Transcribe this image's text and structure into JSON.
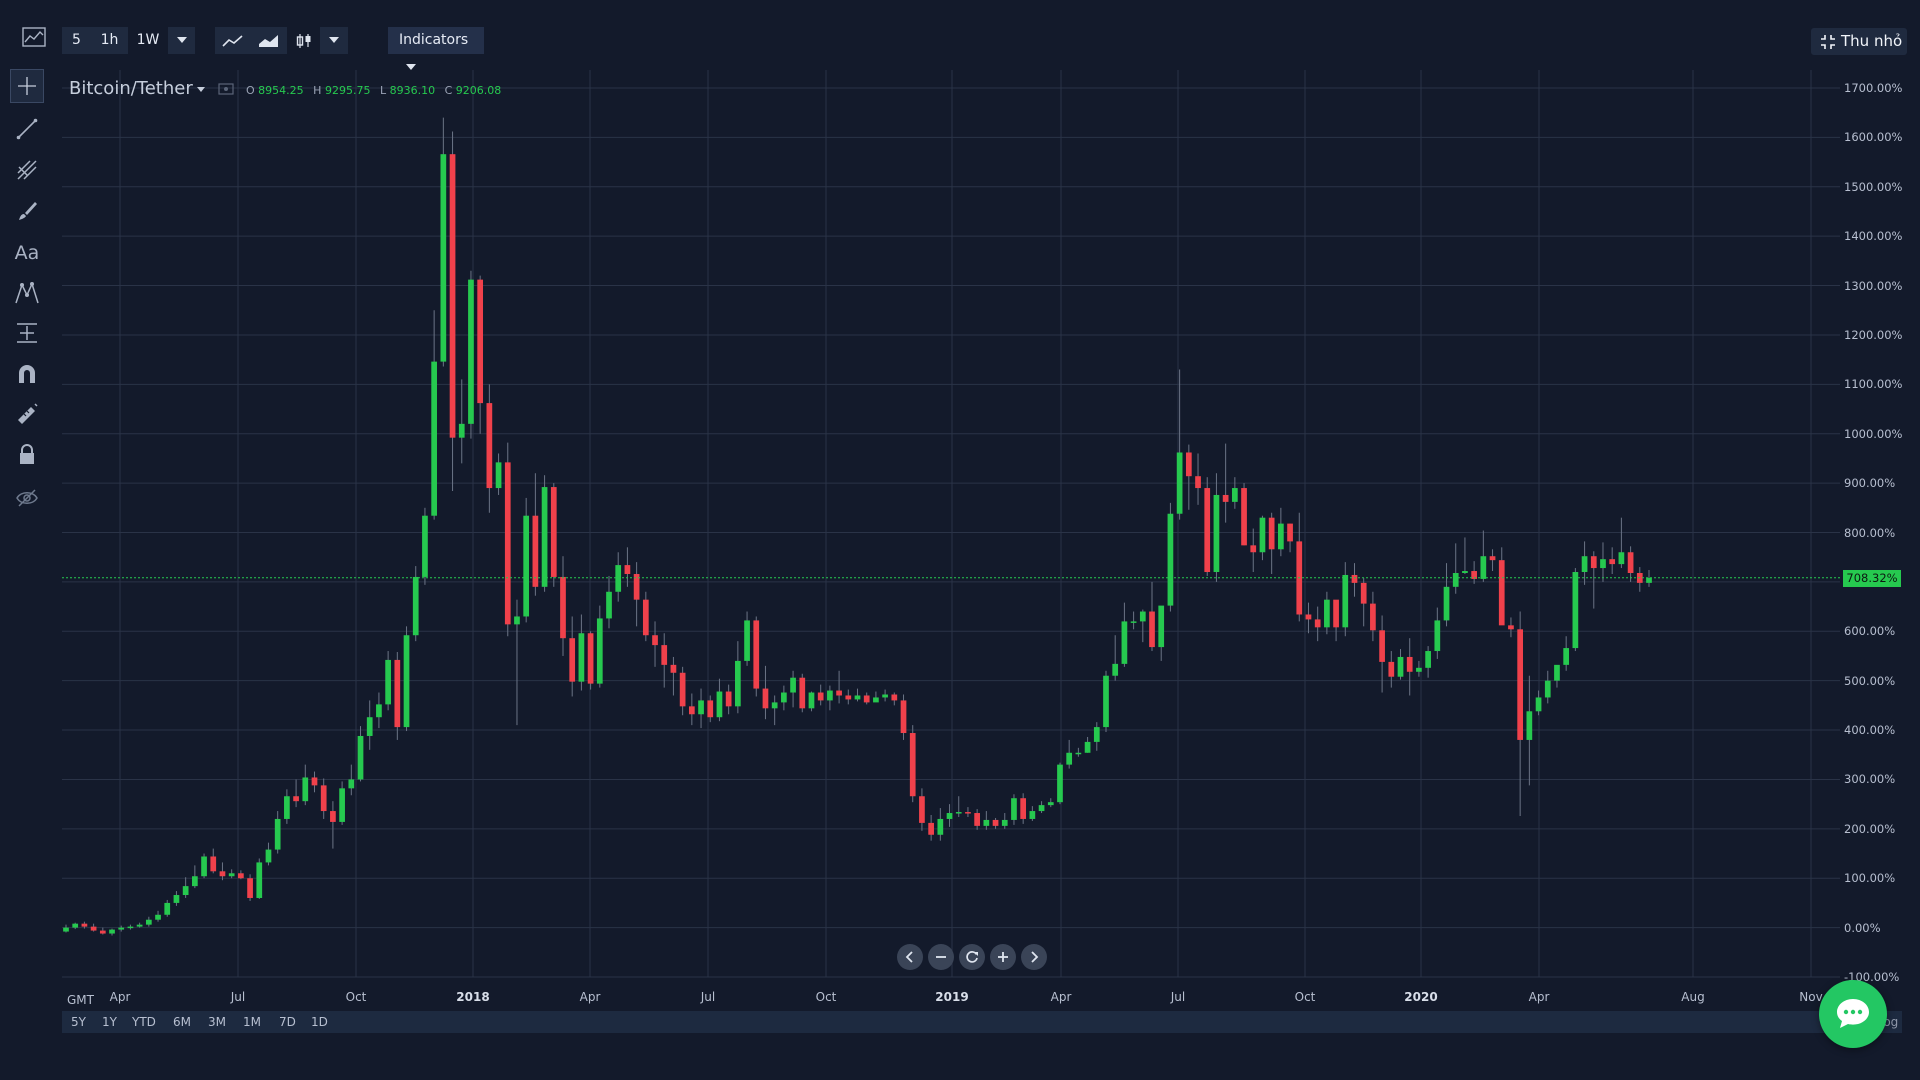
{
  "toolbar": {
    "intervals": [
      "5",
      "1h",
      "1W"
    ],
    "indicators_label": "Indicators",
    "shrink_label": "Thu nhỏ"
  },
  "tools": [
    "chart-type-icon",
    "crosshair-icon",
    "trend-line-icon",
    "fib-icon",
    "brush-icon",
    "text-icon",
    "pattern-icon",
    "measure-icon",
    "magnet-icon",
    "ruler-lock-icon",
    "lock-icon",
    "eye-hide-icon"
  ],
  "symbol": {
    "name": "Bitcoin/Tether",
    "o_label": "O",
    "o_value": "8954.25",
    "h_label": "H",
    "h_value": "9295.75",
    "l_label": "L",
    "l_value": "8936.10",
    "c_label": "C",
    "c_value": "9206.08"
  },
  "current_value_label": "708.32%",
  "timezone": "GMT",
  "ranges": [
    "5Y",
    "1Y",
    "YTD",
    "6M",
    "3M",
    "1M",
    "7D",
    "1D"
  ],
  "log_label": "log",
  "colors": {
    "up": "#26c94f",
    "down": "#f0414b",
    "background": "#131a2b",
    "grid": "#2a3347"
  },
  "chart_data": {
    "type": "candlestick",
    "y_axis_labels": [
      "1700.00%",
      "1600.00%",
      "1500.00%",
      "1400.00%",
      "1300.00%",
      "1200.00%",
      "1100.00%",
      "1000.00%",
      "900.00%",
      "800.00%",
      "700.00%",
      "600.00%",
      "500.00%",
      "400.00%",
      "300.00%",
      "200.00%",
      "100.00%",
      "0.00%",
      "-100.00%"
    ],
    "x_axis_labels": [
      {
        "label": "Apr",
        "bold": false
      },
      {
        "label": "Jul",
        "bold": false
      },
      {
        "label": "Oct",
        "bold": false
      },
      {
        "label": "2018",
        "bold": true
      },
      {
        "label": "Apr",
        "bold": false
      },
      {
        "label": "Jul",
        "bold": false
      },
      {
        "label": "Oct",
        "bold": false
      },
      {
        "label": "2019",
        "bold": true
      },
      {
        "label": "Apr",
        "bold": false
      },
      {
        "label": "Jul",
        "bold": false
      },
      {
        "label": "Oct",
        "bold": false
      },
      {
        "label": "2020",
        "bold": true
      },
      {
        "label": "Apr",
        "bold": false
      },
      {
        "label": "Aug",
        "bold": false
      },
      {
        "label": "Nov",
        "bold": false
      }
    ],
    "ylim": [
      -100,
      1700
    ],
    "current_value": 708.32,
    "candles_ohlc_percent": [
      [
        -8,
        0,
        -10,
        6
      ],
      [
        0,
        8,
        -3,
        10
      ],
      [
        8,
        2,
        -2,
        12
      ],
      [
        2,
        -6,
        -8,
        8
      ],
      [
        -6,
        -12,
        -14,
        0
      ],
      [
        -12,
        -4,
        -16,
        -2
      ],
      [
        -4,
        0,
        -8,
        4
      ],
      [
        0,
        2,
        -4,
        6
      ],
      [
        2,
        6,
        0,
        10
      ],
      [
        6,
        16,
        2,
        22
      ],
      [
        16,
        26,
        12,
        34
      ],
      [
        26,
        50,
        22,
        56
      ],
      [
        50,
        66,
        44,
        74
      ],
      [
        66,
        84,
        60,
        102
      ],
      [
        84,
        104,
        80,
        126
      ],
      [
        104,
        144,
        100,
        150
      ],
      [
        144,
        114,
        110,
        160
      ],
      [
        114,
        104,
        96,
        132
      ],
      [
        104,
        110,
        100,
        118
      ],
      [
        110,
        100,
        98,
        116
      ],
      [
        100,
        60,
        54,
        108
      ],
      [
        60,
        132,
        58,
        140
      ],
      [
        132,
        158,
        126,
        172
      ],
      [
        158,
        220,
        150,
        236
      ],
      [
        220,
        266,
        210,
        280
      ],
      [
        266,
        256,
        244,
        300
      ],
      [
        256,
        304,
        248,
        330
      ],
      [
        304,
        288,
        274,
        316
      ],
      [
        288,
        236,
        220,
        302
      ],
      [
        236,
        214,
        160,
        256
      ],
      [
        214,
        282,
        208,
        296
      ],
      [
        282,
        300,
        268,
        330
      ],
      [
        300,
        388,
        296,
        408
      ],
      [
        388,
        426,
        360,
        460
      ],
      [
        426,
        452,
        404,
        476
      ],
      [
        452,
        542,
        440,
        560
      ],
      [
        542,
        406,
        380,
        558
      ],
      [
        406,
        592,
        398,
        610
      ],
      [
        592,
        710,
        580,
        732
      ],
      [
        710,
        834,
        694,
        850
      ],
      [
        834,
        1146,
        826,
        1250
      ],
      [
        1146,
        1566,
        1136,
        1640
      ],
      [
        1566,
        992,
        884,
        1612
      ],
      [
        992,
        1020,
        940,
        1110
      ],
      [
        1020,
        1312,
        990,
        1330
      ],
      [
        1312,
        1062,
        1000,
        1320
      ],
      [
        1062,
        890,
        840,
        1100
      ],
      [
        890,
        942,
        876,
        960
      ],
      [
        942,
        614,
        590,
        982
      ],
      [
        614,
        630,
        410,
        664
      ],
      [
        630,
        834,
        618,
        870
      ],
      [
        834,
        690,
        672,
        920
      ],
      [
        690,
        892,
        680,
        916
      ],
      [
        892,
        710,
        690,
        900
      ],
      [
        710,
        586,
        550,
        752
      ],
      [
        586,
        498,
        468,
        630
      ],
      [
        498,
        596,
        480,
        634
      ],
      [
        596,
        494,
        482,
        600
      ],
      [
        494,
        626,
        486,
        652
      ],
      [
        626,
        680,
        606,
        712
      ],
      [
        680,
        734,
        660,
        760
      ],
      [
        734,
        716,
        690,
        770
      ],
      [
        716,
        664,
        610,
        740
      ],
      [
        664,
        592,
        580,
        680
      ],
      [
        592,
        572,
        528,
        620
      ],
      [
        572,
        532,
        486,
        596
      ],
      [
        532,
        516,
        470,
        548
      ],
      [
        516,
        448,
        430,
        528
      ],
      [
        448,
        432,
        410,
        474
      ],
      [
        432,
        460,
        404,
        484
      ],
      [
        460,
        426,
        416,
        470
      ],
      [
        426,
        478,
        418,
        504
      ],
      [
        478,
        448,
        432,
        492
      ],
      [
        448,
        540,
        434,
        580
      ],
      [
        540,
        622,
        530,
        640
      ],
      [
        622,
        484,
        468,
        630
      ],
      [
        484,
        444,
        422,
        530
      ],
      [
        444,
        456,
        410,
        470
      ],
      [
        456,
        476,
        440,
        490
      ],
      [
        476,
        506,
        446,
        520
      ],
      [
        506,
        444,
        436,
        514
      ],
      [
        444,
        476,
        438,
        478
      ],
      [
        476,
        460,
        450,
        492
      ],
      [
        460,
        480,
        440,
        490
      ],
      [
        480,
        470,
        454,
        520
      ],
      [
        470,
        462,
        452,
        482
      ],
      [
        462,
        470,
        458,
        484
      ],
      [
        470,
        456,
        452,
        476
      ],
      [
        456,
        466,
        458,
        478
      ],
      [
        466,
        472,
        458,
        482
      ],
      [
        472,
        460,
        450,
        476
      ],
      [
        460,
        394,
        380,
        472
      ],
      [
        394,
        266,
        254,
        410
      ],
      [
        266,
        212,
        196,
        282
      ],
      [
        212,
        188,
        176,
        228
      ],
      [
        188,
        220,
        176,
        242
      ],
      [
        220,
        232,
        204,
        250
      ],
      [
        232,
        234,
        224,
        266
      ],
      [
        234,
        232,
        224,
        244
      ],
      [
        232,
        206,
        198,
        240
      ],
      [
        206,
        218,
        198,
        236
      ],
      [
        218,
        206,
        200,
        222
      ],
      [
        206,
        218,
        200,
        232
      ],
      [
        218,
        262,
        208,
        270
      ],
      [
        262,
        220,
        210,
        272
      ],
      [
        220,
        236,
        216,
        246
      ],
      [
        236,
        248,
        232,
        256
      ],
      [
        248,
        254,
        244,
        262
      ],
      [
        254,
        330,
        250,
        334
      ],
      [
        330,
        354,
        322,
        380
      ],
      [
        354,
        354,
        346,
        364
      ],
      [
        354,
        376,
        354,
        386
      ],
      [
        376,
        406,
        358,
        416
      ],
      [
        406,
        510,
        396,
        520
      ],
      [
        510,
        534,
        500,
        592
      ],
      [
        534,
        620,
        528,
        658
      ],
      [
        620,
        620,
        604,
        640
      ],
      [
        620,
        640,
        578,
        644
      ],
      [
        640,
        568,
        560,
        700
      ],
      [
        568,
        652,
        540,
        648
      ],
      [
        652,
        838,
        640,
        860
      ],
      [
        838,
        962,
        826,
        1130
      ],
      [
        962,
        914,
        846,
        978
      ],
      [
        914,
        890,
        856,
        960
      ],
      [
        890,
        720,
        712,
        912
      ],
      [
        720,
        876,
        700,
        920
      ],
      [
        876,
        862,
        820,
        980
      ],
      [
        862,
        890,
        848,
        912
      ],
      [
        890,
        774,
        774,
        900
      ],
      [
        774,
        760,
        720,
        808
      ],
      [
        760,
        830,
        744,
        834
      ],
      [
        830,
        766,
        716,
        840
      ],
      [
        766,
        818,
        752,
        850
      ],
      [
        818,
        782,
        760,
        818
      ],
      [
        782,
        634,
        620,
        840
      ],
      [
        634,
        624,
        596,
        658
      ],
      [
        624,
        608,
        580,
        650
      ],
      [
        608,
        664,
        594,
        680
      ],
      [
        664,
        608,
        580,
        646
      ],
      [
        608,
        714,
        590,
        740
      ],
      [
        714,
        698,
        670,
        738
      ],
      [
        698,
        656,
        610,
        708
      ],
      [
        656,
        602,
        580,
        680
      ],
      [
        602,
        538,
        476,
        632
      ],
      [
        538,
        508,
        486,
        560
      ],
      [
        508,
        548,
        502,
        564
      ],
      [
        548,
        518,
        470,
        586
      ],
      [
        518,
        526,
        508,
        540
      ],
      [
        526,
        560,
        506,
        570
      ],
      [
        560,
        622,
        544,
        648
      ],
      [
        622,
        690,
        610,
        738
      ],
      [
        690,
        718,
        676,
        778
      ],
      [
        718,
        722,
        716,
        790
      ],
      [
        722,
        706,
        696,
        742
      ],
      [
        706,
        752,
        700,
        804
      ],
      [
        752,
        744,
        722,
        766
      ],
      [
        744,
        612,
        640,
        770
      ],
      [
        612,
        604,
        588,
        628
      ],
      [
        604,
        380,
        226,
        640
      ],
      [
        380,
        438,
        288,
        510
      ],
      [
        438,
        466,
        430,
        480
      ],
      [
        466,
        500,
        454,
        520
      ],
      [
        500,
        532,
        486,
        530
      ],
      [
        532,
        566,
        520,
        590
      ],
      [
        566,
        720,
        560,
        728
      ],
      [
        720,
        752,
        694,
        782
      ],
      [
        752,
        728,
        646,
        762
      ],
      [
        728,
        746,
        700,
        780
      ],
      [
        746,
        736,
        716,
        770
      ],
      [
        736,
        760,
        728,
        830
      ],
      [
        760,
        718,
        700,
        772
      ],
      [
        718,
        698,
        680,
        730
      ],
      [
        698,
        708,
        690,
        724
      ]
    ]
  }
}
